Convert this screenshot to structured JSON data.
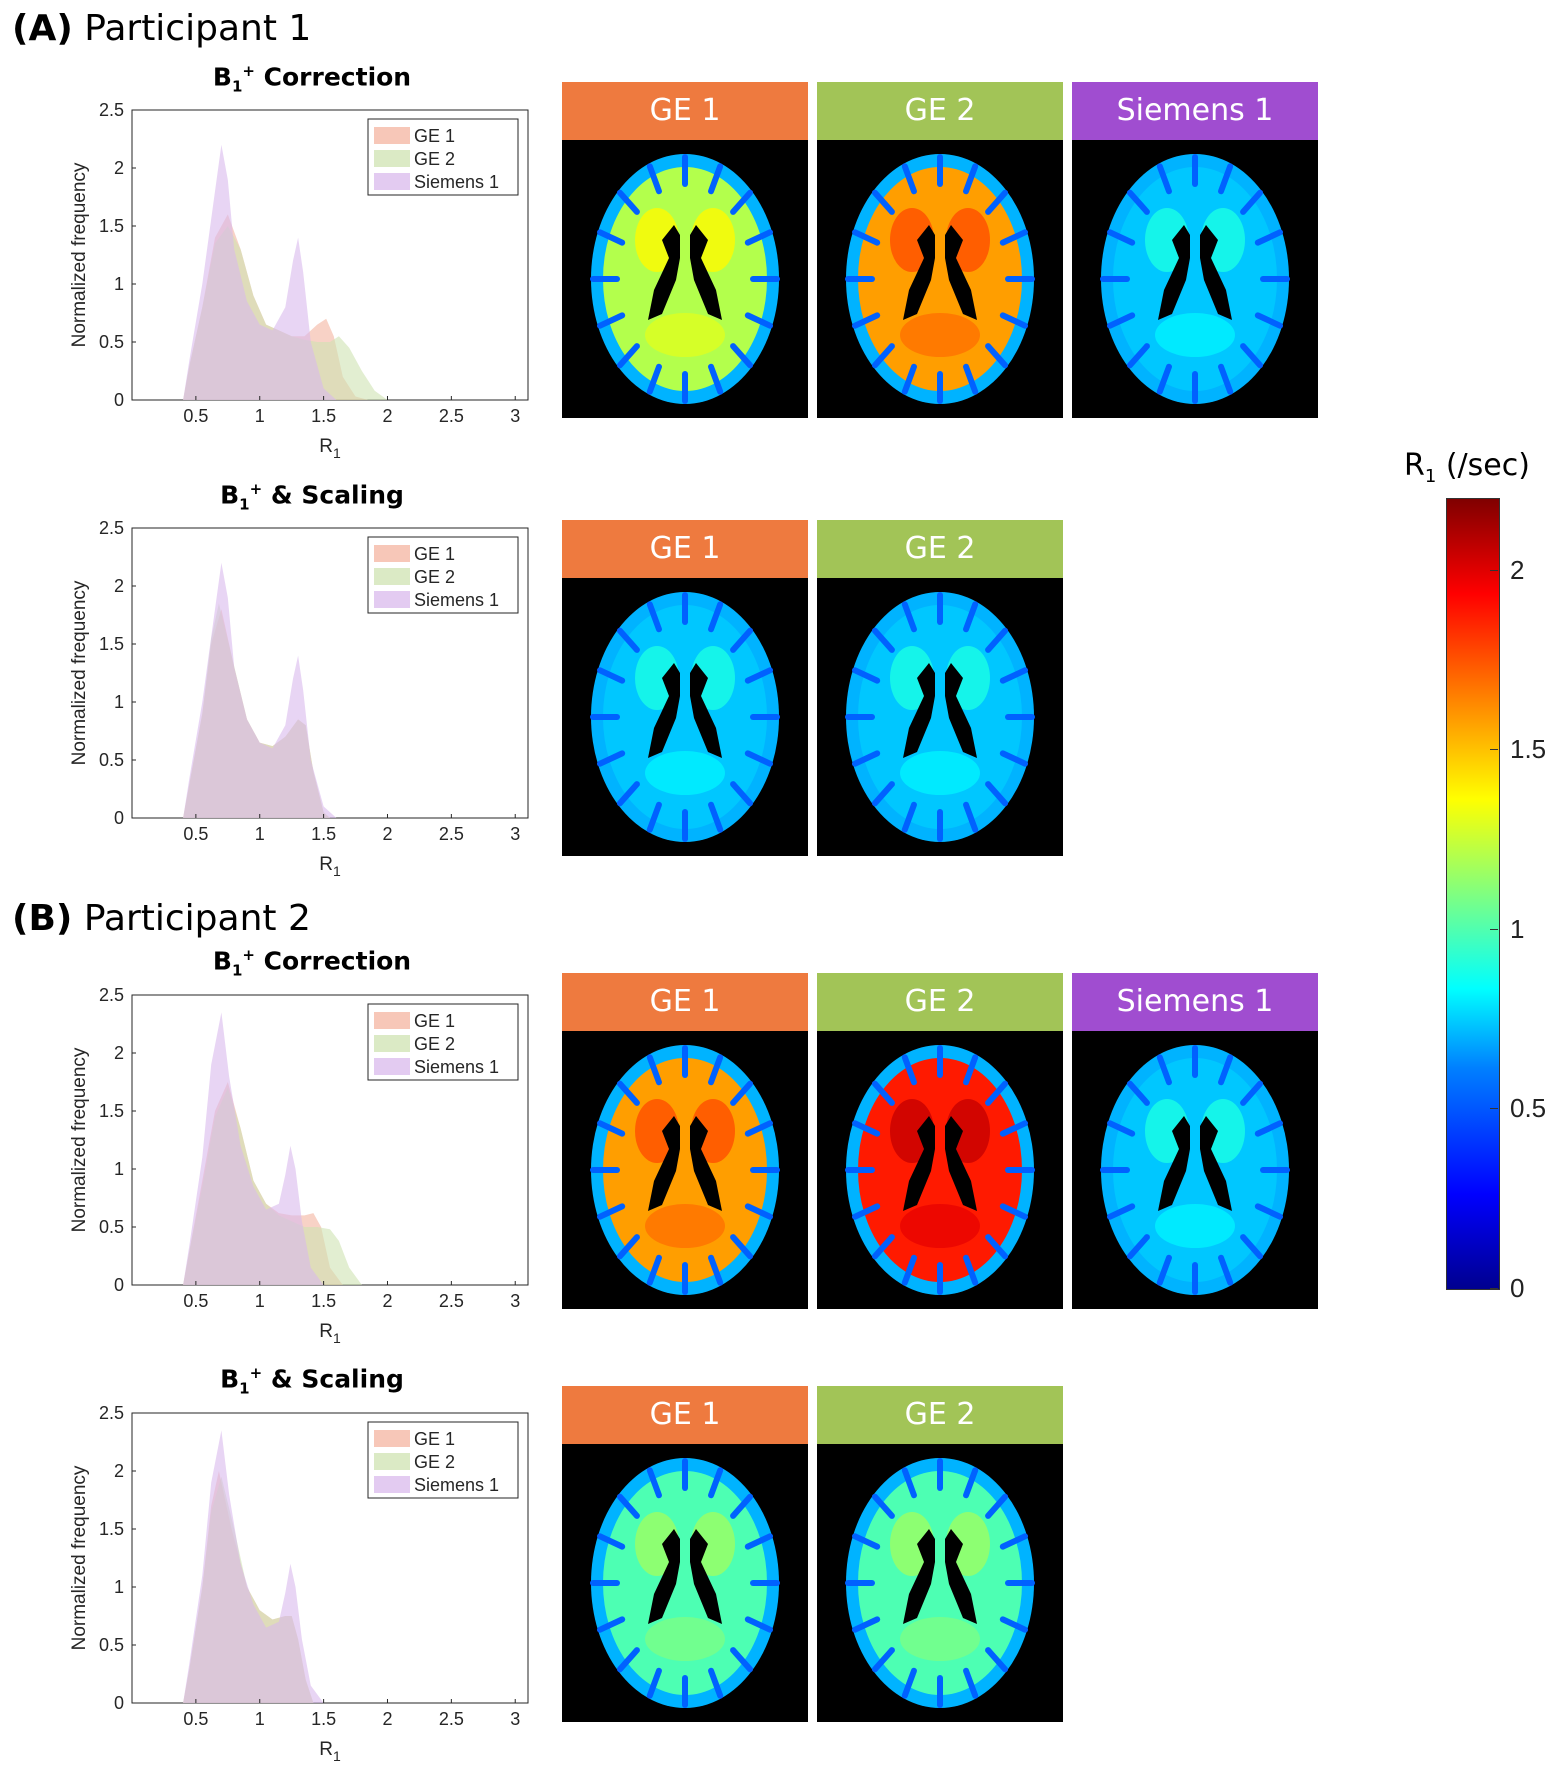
{
  "sections": [
    {
      "label": "(A)",
      "title": "Participant 1"
    },
    {
      "label": "(B)",
      "title": "Participant 2"
    }
  ],
  "plot_titles": {
    "correction": {
      "main": "B",
      "sub": "1",
      "sup": "+",
      "rest": " Correction"
    },
    "scaling": {
      "main": "B",
      "sub": "1",
      "sup": "+",
      "rest": " & Scaling"
    }
  },
  "colors": {
    "GE 1": "#ee7a3f",
    "GE 2": "#a2c457",
    "Siemens 1": "#a04dd0"
  },
  "hist_fill": {
    "GE 1": "#f4b4a0",
    "GE 2": "#cfe3b2",
    "Siemens 1": "#d9b9ec"
  },
  "brain_headers": {
    "p1_correction": [
      "GE 1",
      "GE 2",
      "Siemens 1"
    ],
    "p1_scaling": [
      "GE 1",
      "GE 2"
    ],
    "p2_correction": [
      "GE 1",
      "GE 2",
      "Siemens 1"
    ],
    "p2_scaling": [
      "GE 1",
      "GE 2"
    ]
  },
  "brain_intensity": {
    "p1_correction": [
      0.55,
      0.72,
      0.32
    ],
    "p1_scaling": [
      0.32,
      0.32
    ],
    "p2_correction": [
      0.72,
      0.85,
      0.32
    ],
    "p2_scaling": [
      0.45,
      0.45
    ]
  },
  "colorbar": {
    "title": "R",
    "title_sub": "1",
    "title_rest": " (/sec)",
    "ticks": [
      "0",
      "0.5",
      "1",
      "1.5",
      "2"
    ],
    "range": [
      0,
      2.2
    ]
  },
  "chart_data": [
    {
      "type": "area",
      "title": "B1+ Correction",
      "xlabel": "R1",
      "ylabel": "Normalized frequency",
      "xlim": [
        0,
        3.1
      ],
      "ylim": [
        0,
        2.5
      ],
      "xticks": [
        "0.5",
        "1",
        "1.5",
        "2",
        "2.5",
        "3"
      ],
      "yticks": [
        "0",
        "0.5",
        "1",
        "1.5",
        "2",
        "2.5"
      ],
      "legend": "top-right",
      "series": [
        {
          "name": "GE 1",
          "x": [
            0.4,
            0.45,
            0.55,
            0.65,
            0.75,
            0.85,
            0.95,
            1.05,
            1.15,
            1.25,
            1.35,
            1.45,
            1.52,
            1.58,
            1.65,
            1.75,
            1.85
          ],
          "values": [
            0,
            0.3,
            0.8,
            1.4,
            1.6,
            1.3,
            0.9,
            0.65,
            0.6,
            0.55,
            0.55,
            0.65,
            0.7,
            0.55,
            0.2,
            0.03,
            0
          ]
        },
        {
          "name": "GE 2",
          "x": [
            0.4,
            0.45,
            0.55,
            0.65,
            0.75,
            0.85,
            0.95,
            1.05,
            1.15,
            1.25,
            1.35,
            1.45,
            1.55,
            1.62,
            1.7,
            1.8,
            1.9,
            2.0
          ],
          "values": [
            0,
            0.3,
            0.8,
            1.35,
            1.5,
            1.3,
            0.9,
            0.65,
            0.6,
            0.55,
            0.52,
            0.5,
            0.5,
            0.55,
            0.45,
            0.25,
            0.08,
            0
          ]
        },
        {
          "name": "Siemens 1",
          "x": [
            0.4,
            0.45,
            0.55,
            0.65,
            0.7,
            0.75,
            0.8,
            0.9,
            1.0,
            1.1,
            1.2,
            1.26,
            1.3,
            1.34,
            1.4,
            1.5,
            1.6
          ],
          "values": [
            0,
            0.35,
            1.0,
            1.8,
            2.2,
            1.9,
            1.3,
            0.85,
            0.65,
            0.6,
            0.8,
            1.2,
            1.4,
            1.1,
            0.5,
            0.1,
            0
          ]
        }
      ]
    },
    {
      "type": "area",
      "title": "B1+ & Scaling",
      "xlabel": "R1",
      "ylabel": "Normalized frequency",
      "xlim": [
        0,
        3.1
      ],
      "ylim": [
        0,
        2.5
      ],
      "xticks": [
        "0.5",
        "1",
        "1.5",
        "2",
        "2.5",
        "3"
      ],
      "yticks": [
        "0",
        "0.5",
        "1",
        "1.5",
        "2",
        "2.5"
      ],
      "legend": "top-right",
      "series": [
        {
          "name": "GE 1",
          "x": [
            0.4,
            0.45,
            0.55,
            0.62,
            0.7,
            0.8,
            0.9,
            1.0,
            1.1,
            1.2,
            1.3,
            1.36,
            1.42,
            1.5,
            1.55
          ],
          "values": [
            0,
            0.3,
            0.9,
            1.5,
            1.8,
            1.3,
            0.85,
            0.65,
            0.62,
            0.7,
            0.85,
            0.8,
            0.4,
            0.05,
            0
          ]
        },
        {
          "name": "GE 2",
          "x": [
            0.4,
            0.45,
            0.55,
            0.62,
            0.68,
            0.78,
            0.9,
            1.0,
            1.1,
            1.2,
            1.3,
            1.36,
            1.42,
            1.5,
            1.55
          ],
          "values": [
            0,
            0.3,
            0.9,
            1.55,
            1.85,
            1.4,
            0.85,
            0.65,
            0.62,
            0.7,
            0.85,
            0.8,
            0.4,
            0.05,
            0
          ]
        },
        {
          "name": "Siemens 1",
          "x": [
            0.4,
            0.45,
            0.55,
            0.65,
            0.7,
            0.75,
            0.8,
            0.9,
            1.0,
            1.1,
            1.2,
            1.26,
            1.3,
            1.34,
            1.4,
            1.5,
            1.6
          ],
          "values": [
            0,
            0.35,
            1.0,
            1.8,
            2.2,
            1.9,
            1.3,
            0.85,
            0.65,
            0.6,
            0.8,
            1.2,
            1.4,
            1.1,
            0.5,
            0.1,
            0
          ]
        }
      ]
    },
    {
      "type": "area",
      "title": "B1+ Correction",
      "xlabel": "R1",
      "ylabel": "Normalized frequency",
      "xlim": [
        0,
        3.1
      ],
      "ylim": [
        0,
        2.5
      ],
      "xticks": [
        "0.5",
        "1",
        "1.5",
        "2",
        "2.5",
        "3"
      ],
      "yticks": [
        "0",
        "0.5",
        "1",
        "1.5",
        "2",
        "2.5"
      ],
      "legend": "top-right",
      "series": [
        {
          "name": "GE 1",
          "x": [
            0.4,
            0.45,
            0.55,
            0.65,
            0.75,
            0.85,
            0.95,
            1.05,
            1.15,
            1.25,
            1.35,
            1.42,
            1.48,
            1.55,
            1.65
          ],
          "values": [
            0,
            0.3,
            0.9,
            1.5,
            1.75,
            1.35,
            0.9,
            0.7,
            0.62,
            0.6,
            0.6,
            0.62,
            0.5,
            0.15,
            0
          ]
        },
        {
          "name": "GE 2",
          "x": [
            0.4,
            0.45,
            0.55,
            0.65,
            0.75,
            0.85,
            0.95,
            1.05,
            1.15,
            1.25,
            1.35,
            1.45,
            1.55,
            1.62,
            1.7,
            1.8
          ],
          "values": [
            0,
            0.3,
            0.85,
            1.45,
            1.7,
            1.35,
            0.9,
            0.7,
            0.6,
            0.55,
            0.5,
            0.5,
            0.48,
            0.38,
            0.15,
            0
          ]
        },
        {
          "name": "Siemens 1",
          "x": [
            0.4,
            0.45,
            0.55,
            0.62,
            0.7,
            0.76,
            0.85,
            0.95,
            1.05,
            1.15,
            1.2,
            1.24,
            1.28,
            1.33,
            1.4,
            1.5
          ],
          "values": [
            0,
            0.35,
            1.1,
            1.9,
            2.35,
            1.8,
            1.2,
            0.85,
            0.65,
            0.7,
            0.95,
            1.2,
            1.0,
            0.55,
            0.15,
            0
          ]
        }
      ]
    },
    {
      "type": "area",
      "title": "B1+ & Scaling",
      "xlabel": "R1",
      "ylabel": "Normalized frequency",
      "xlim": [
        0,
        3.1
      ],
      "ylim": [
        0,
        2.5
      ],
      "xticks": [
        "0.5",
        "1",
        "1.5",
        "2",
        "2.5",
        "3"
      ],
      "yticks": [
        "0",
        "0.5",
        "1",
        "1.5",
        "2",
        "2.5"
      ],
      "legend": "top-right",
      "series": [
        {
          "name": "GE 1",
          "x": [
            0.4,
            0.45,
            0.55,
            0.62,
            0.68,
            0.78,
            0.9,
            1.0,
            1.1,
            1.2,
            1.25,
            1.3,
            1.36,
            1.42
          ],
          "values": [
            0,
            0.3,
            1.0,
            1.7,
            2.0,
            1.5,
            1.0,
            0.8,
            0.72,
            0.75,
            0.75,
            0.55,
            0.2,
            0
          ]
        },
        {
          "name": "GE 2",
          "x": [
            0.4,
            0.45,
            0.55,
            0.62,
            0.7,
            0.8,
            0.9,
            1.0,
            1.1,
            1.2,
            1.25,
            1.3,
            1.36,
            1.42
          ],
          "values": [
            0,
            0.3,
            1.0,
            1.65,
            1.95,
            1.5,
            1.0,
            0.8,
            0.72,
            0.75,
            0.75,
            0.55,
            0.2,
            0
          ]
        },
        {
          "name": "Siemens 1",
          "x": [
            0.4,
            0.45,
            0.55,
            0.62,
            0.7,
            0.76,
            0.85,
            0.95,
            1.05,
            1.15,
            1.2,
            1.24,
            1.28,
            1.33,
            1.4,
            1.5
          ],
          "values": [
            0,
            0.35,
            1.1,
            1.9,
            2.35,
            1.8,
            1.2,
            0.85,
            0.65,
            0.7,
            0.95,
            1.2,
            1.0,
            0.55,
            0.15,
            0
          ]
        }
      ]
    }
  ]
}
